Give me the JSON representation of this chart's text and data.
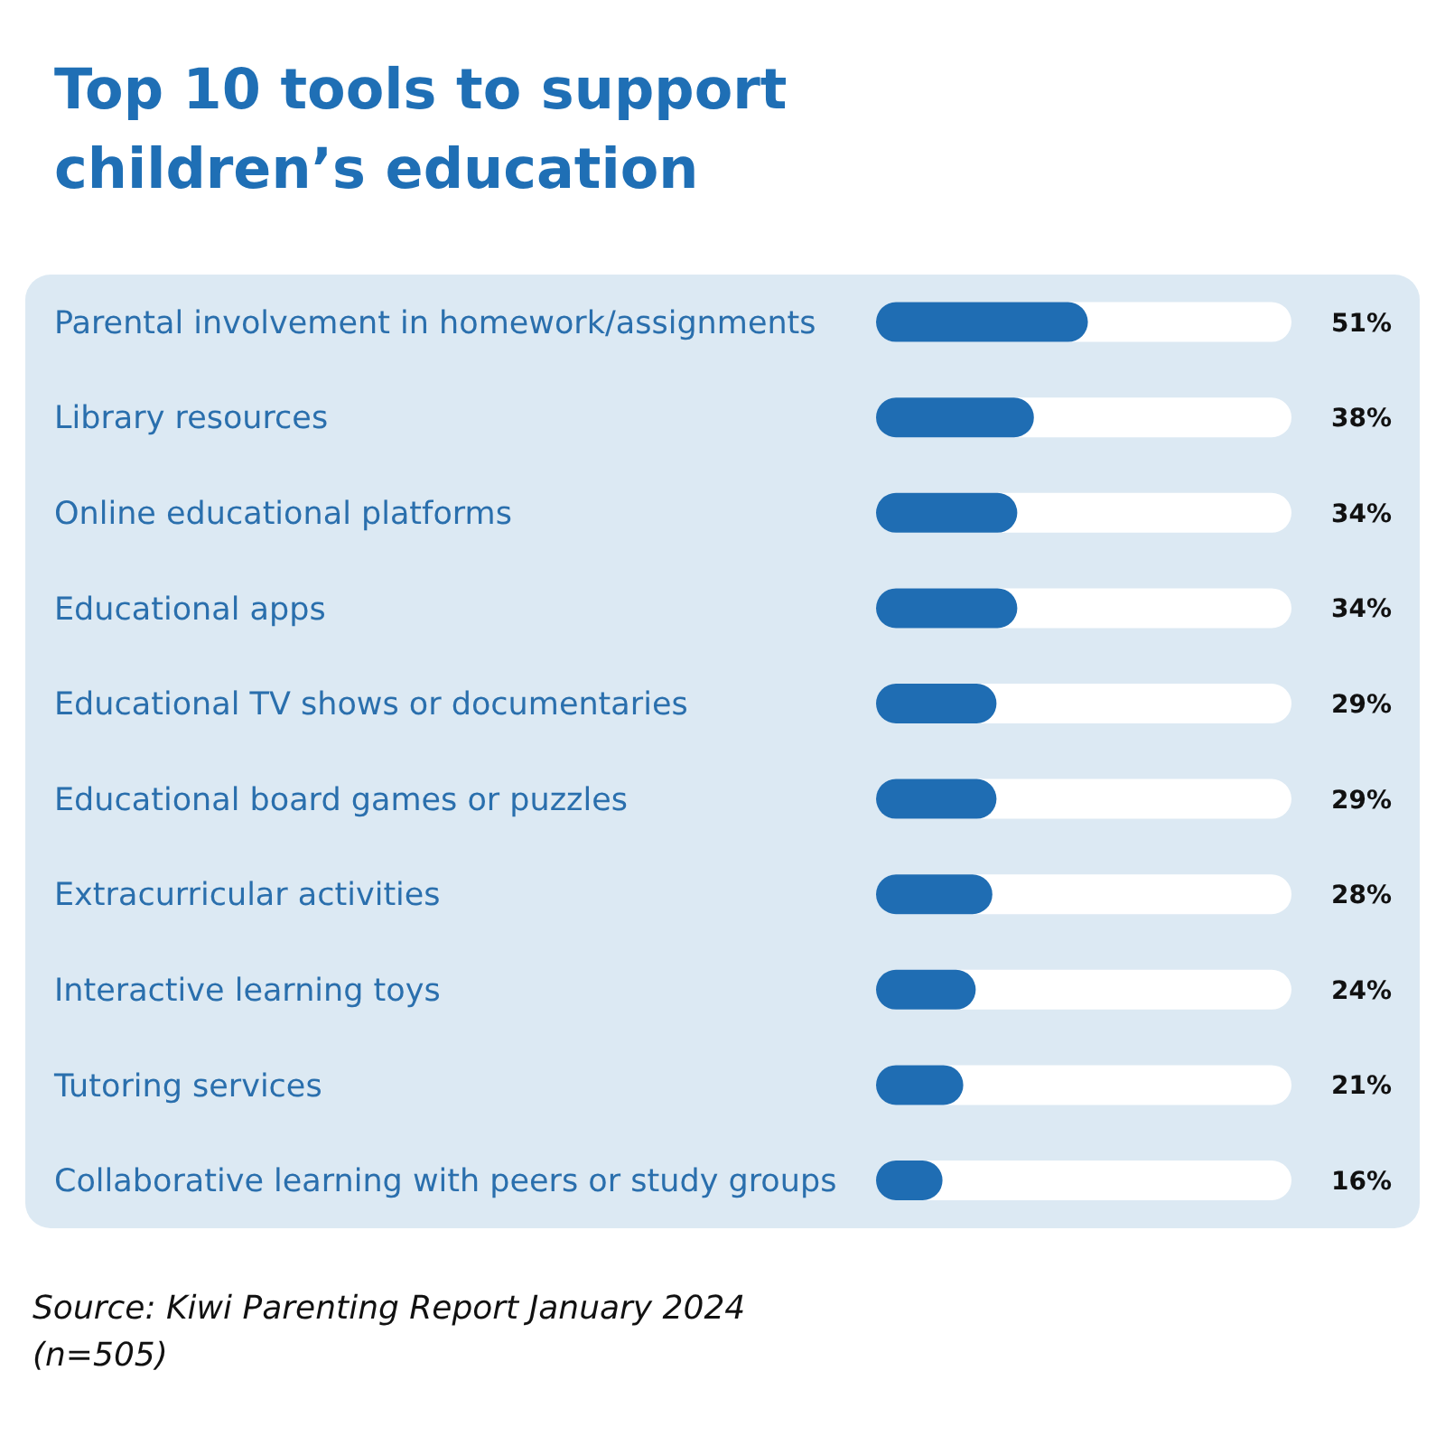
{
  "chart_data": {
    "type": "bar",
    "orientation": "horizontal",
    "title": "Top 10 tools to support children’s education",
    "categories": [
      "Parental involvement in homework/assignments",
      "Library resources",
      "Online educational platforms",
      "Educational apps",
      "Educational TV shows or documentaries",
      "Educational board games or puzzles",
      "Extracurricular activities",
      "Interactive learning toys",
      "Tutoring services",
      "Collaborative learning with peers or study groups"
    ],
    "values": [
      51,
      38,
      34,
      34,
      29,
      29,
      28,
      24,
      21,
      16
    ],
    "value_labels": [
      "51%",
      "38%",
      "34%",
      "34%",
      "29%",
      "29%",
      "28%",
      "24%",
      "21%",
      "16%"
    ],
    "color": "#1f6db3",
    "xlim": [
      0,
      100
    ],
    "annotations": [
      "Source: Kiwi Parenting Report January 2024 (n=505)"
    ]
  }
}
